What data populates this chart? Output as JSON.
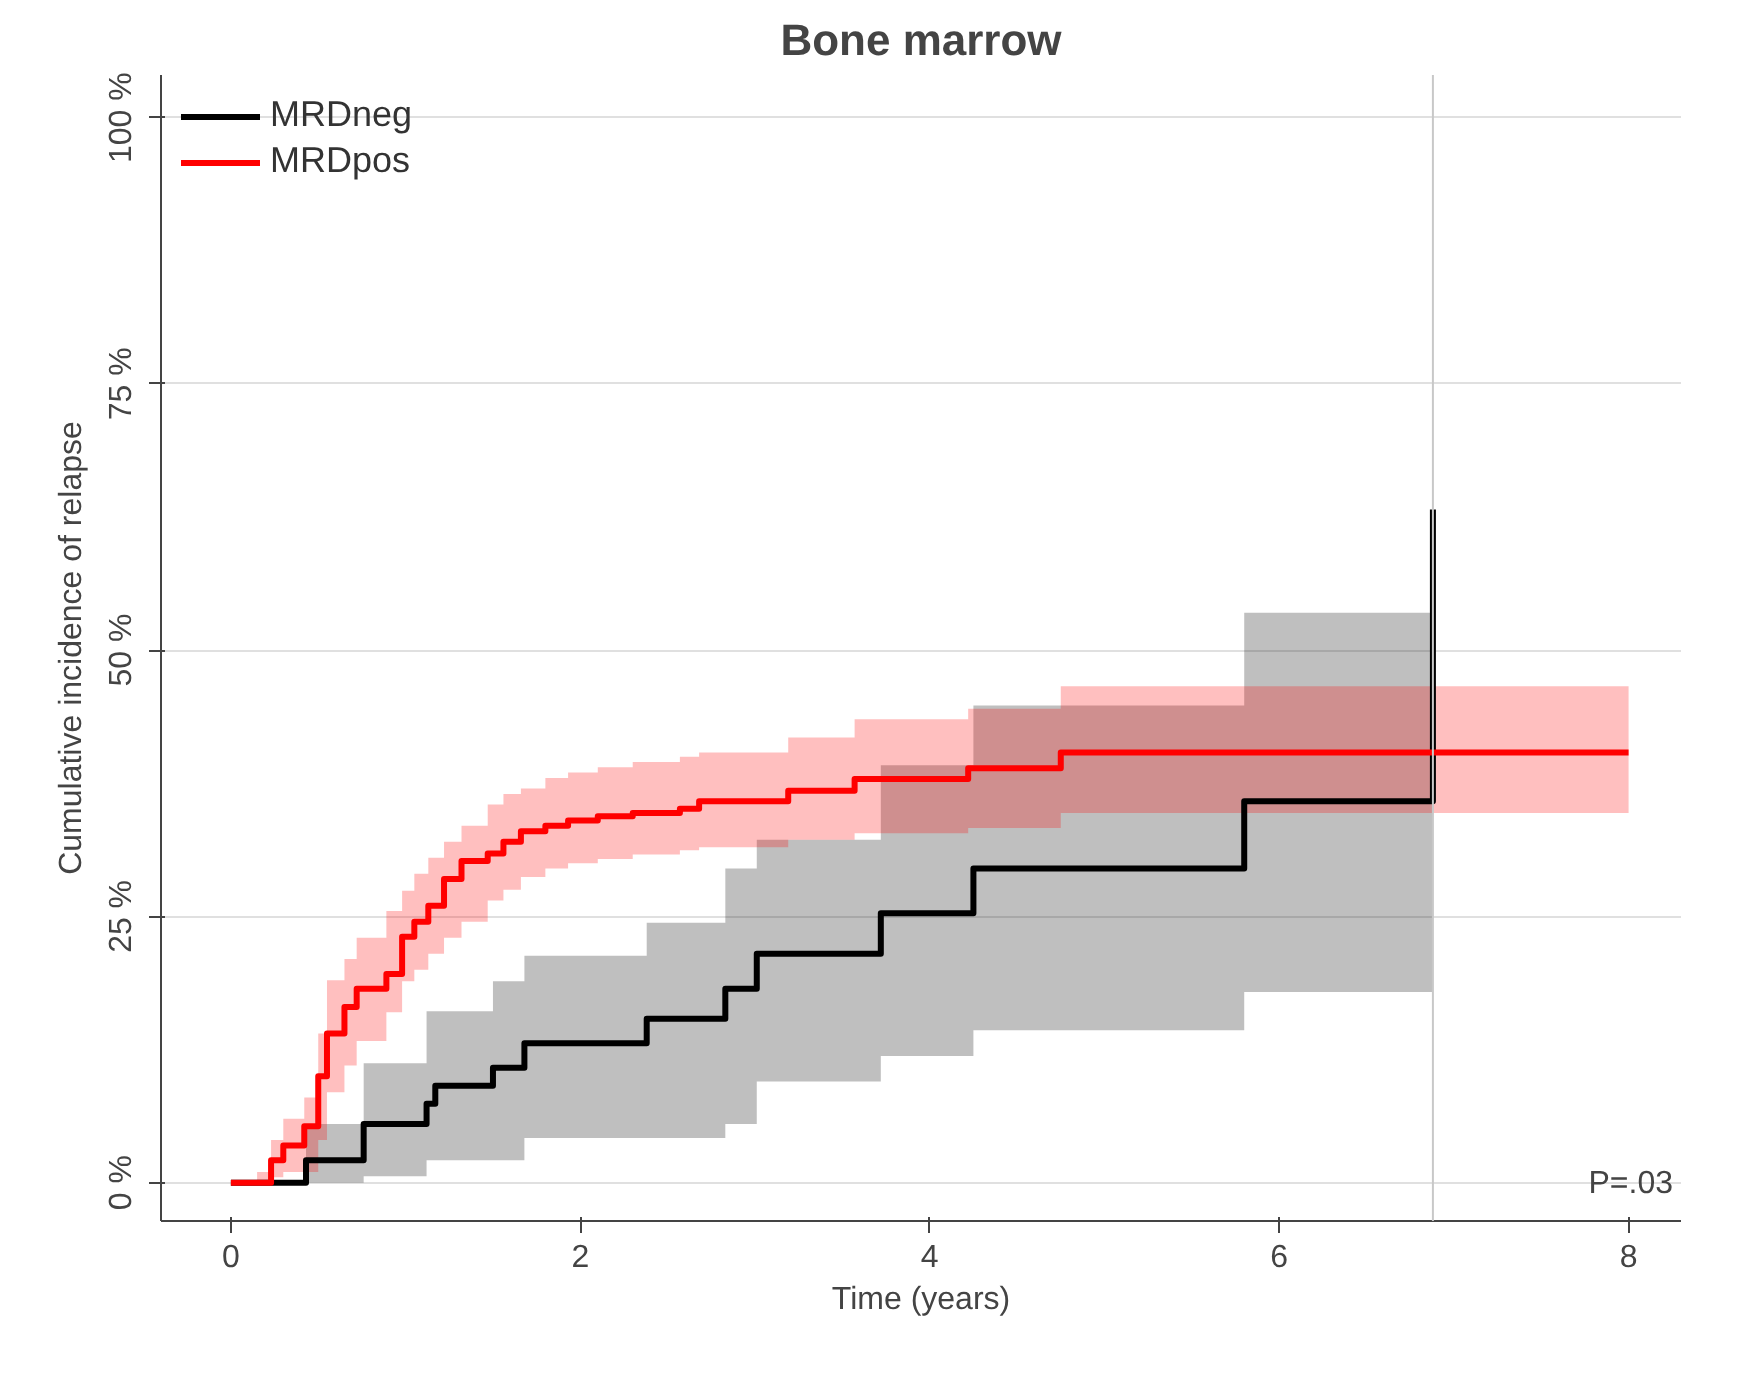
{
  "chart_data": {
    "type": "step",
    "title": "Bone marrow",
    "xlabel": "Time (years)",
    "ylabel": "Cumulative incidence of relapse",
    "xlim": [
      -0.4,
      8.3
    ],
    "ylim": [
      -3.6,
      104
    ],
    "xticks": [
      0,
      2,
      4,
      6,
      8
    ],
    "yticks": [
      {
        "value": 0,
        "label": "0 %"
      },
      {
        "value": 25,
        "label": "25 %"
      },
      {
        "value": 50,
        "label": "50 %"
      },
      {
        "value": 75,
        "label": "75 %"
      },
      {
        "value": 100,
        "label": "100 %"
      }
    ],
    "grid": "y",
    "legend": "top left",
    "series": [
      {
        "name": "MRDneg",
        "color": "#000000",
        "x": [
          0,
          0.43,
          0.76,
          1.12,
          1.17,
          1.5,
          1.68,
          2.38,
          2.83,
          3.01,
          3.72,
          4.25,
          5.8,
          6.88
        ],
        "values": [
          0,
          2.1,
          5.5,
          7.4,
          9.1,
          10.8,
          13.1,
          15.4,
          18.2,
          21.5,
          25.3,
          29.5,
          35.8,
          63.2
        ],
        "lower": [
          0,
          0,
          0.6,
          2.1,
          2.1,
          2.1,
          4.2,
          4.2,
          5.5,
          9.5,
          11.9,
          14.3,
          17.9,
          17.9
        ],
        "upper": [
          0,
          5.5,
          11.2,
          16.1,
          16.1,
          18.9,
          21.3,
          24.4,
          29.5,
          32.2,
          39.2,
          44.8,
          53.5,
          53.5
        ]
      },
      {
        "name": "MRDpos",
        "color": "#ff0000",
        "x": [
          0,
          0.15,
          0.23,
          0.3,
          0.42,
          0.5,
          0.55,
          0.65,
          0.72,
          0.89,
          0.98,
          1.05,
          1.13,
          1.22,
          1.32,
          1.47,
          1.56,
          1.66,
          1.8,
          1.93,
          2.1,
          2.3,
          2.57,
          2.68,
          3.19,
          3.57,
          4.22,
          4.75,
          8.0
        ],
        "values": [
          0,
          0,
          2.1,
          3.5,
          5.3,
          10,
          14,
          16.5,
          18.2,
          19.6,
          23.1,
          24.5,
          26,
          28.5,
          30.2,
          30.9,
          32,
          33,
          33.5,
          34,
          34.4,
          34.7,
          35.1,
          35.8,
          36.8,
          37.9,
          38.9,
          40.4,
          40.4
        ],
        "upper": [
          0,
          1,
          4,
          6,
          8,
          14,
          19,
          21,
          23,
          25.5,
          27.4,
          29,
          30.5,
          32,
          33.5,
          35.5,
          36.5,
          37,
          38,
          38.5,
          39,
          39.5,
          40,
          40.4,
          41.8,
          43.5,
          44.5,
          46.6,
          46.8
        ],
        "lower": [
          0,
          0,
          0.5,
          1,
          1,
          4,
          8.5,
          11,
          13.3,
          16,
          18.9,
          20,
          21.5,
          23,
          24.5,
          26.5,
          27.5,
          28.7,
          29.5,
          30,
          30.4,
          30.8,
          31.2,
          31.5,
          32.2,
          32.8,
          33.3,
          34.7,
          35.1
        ]
      }
    ],
    "ref_lines": [
      {
        "axis": "x",
        "value": 6.88,
        "color": "#c8c8c8"
      }
    ],
    "annotations": [
      "P=.03"
    ]
  }
}
